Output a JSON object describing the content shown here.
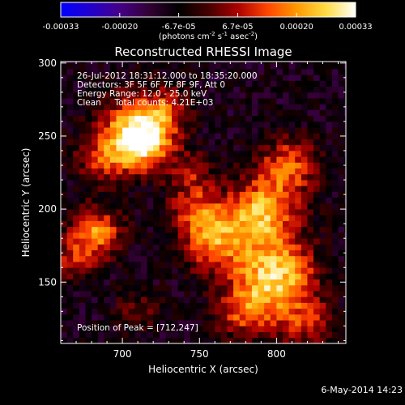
{
  "colorbar": {
    "tick_labels": [
      "-0.00033",
      "-0.00020",
      "-6.7e-05",
      "6.7e-05",
      "0.00020",
      "0.00033"
    ],
    "units_prefix": "(photons cm",
    "units_exp1": "-2",
    "units_mid": " s",
    "units_exp2": "-1",
    "units_mid2": " asec",
    "units_exp3": "-2",
    "units_suffix": ")",
    "colormap": [
      "#0000ff",
      "#2200cc",
      "#440088",
      "#330033",
      "#000000",
      "#440000",
      "#aa0000",
      "#ff4400",
      "#ff9900",
      "#ffdd44",
      "#ffffff"
    ]
  },
  "chart_data": {
    "type": "heatmap",
    "title": "Reconstructed RHESSI Image",
    "xlabel": "Heliocentric X (arcsec)",
    "ylabel": "Heliocentric Y (arcsec)",
    "xlim": [
      660,
      845
    ],
    "ylim": [
      108,
      301
    ],
    "x_ticks": [
      700,
      750,
      800
    ],
    "y_ticks": [
      150,
      200,
      250,
      300
    ],
    "x_tick_labels": [
      "700",
      "750",
      "800"
    ],
    "y_tick_labels": [
      "150",
      "200",
      "250",
      "300"
    ],
    "sources": [
      {
        "x": 712,
        "y": 247,
        "r": 14,
        "amp": 1.0
      },
      {
        "x": 708,
        "y": 258,
        "r": 18,
        "amp": 0.45
      },
      {
        "x": 686,
        "y": 233,
        "r": 12,
        "amp": 0.45
      },
      {
        "x": 790,
        "y": 198,
        "r": 16,
        "amp": 0.85
      },
      {
        "x": 808,
        "y": 230,
        "r": 14,
        "amp": 0.6
      },
      {
        "x": 760,
        "y": 178,
        "r": 15,
        "amp": 0.7
      },
      {
        "x": 747,
        "y": 200,
        "r": 12,
        "amp": 0.5
      },
      {
        "x": 800,
        "y": 155,
        "r": 18,
        "amp": 0.95
      },
      {
        "x": 780,
        "y": 130,
        "r": 14,
        "amp": 0.55
      },
      {
        "x": 820,
        "y": 122,
        "r": 12,
        "amp": 0.45
      },
      {
        "x": 683,
        "y": 184,
        "r": 12,
        "amp": 0.75
      },
      {
        "x": 668,
        "y": 165,
        "r": 10,
        "amp": 0.4
      },
      {
        "x": 730,
        "y": 270,
        "r": 10,
        "amp": 0.4
      },
      {
        "x": 745,
        "y": 225,
        "r": 10,
        "amp": 0.35
      },
      {
        "x": 710,
        "y": 130,
        "r": 10,
        "amp": 0.3
      }
    ],
    "annotations": {
      "time_range": "26-Jul-2012 18:31:12.000 to 18:35:20.000",
      "detectors": "Detectors: 3F 5F 6F 7F 8F 9F, Att 0",
      "energy": "Energy Range: 12.0 - 25.0 keV",
      "clean": "Clean     Total counts: 4.21E+03",
      "peak": "Position of Peak = [712,247]"
    }
  },
  "footer": {
    "date": "6-May-2014 14:23"
  }
}
